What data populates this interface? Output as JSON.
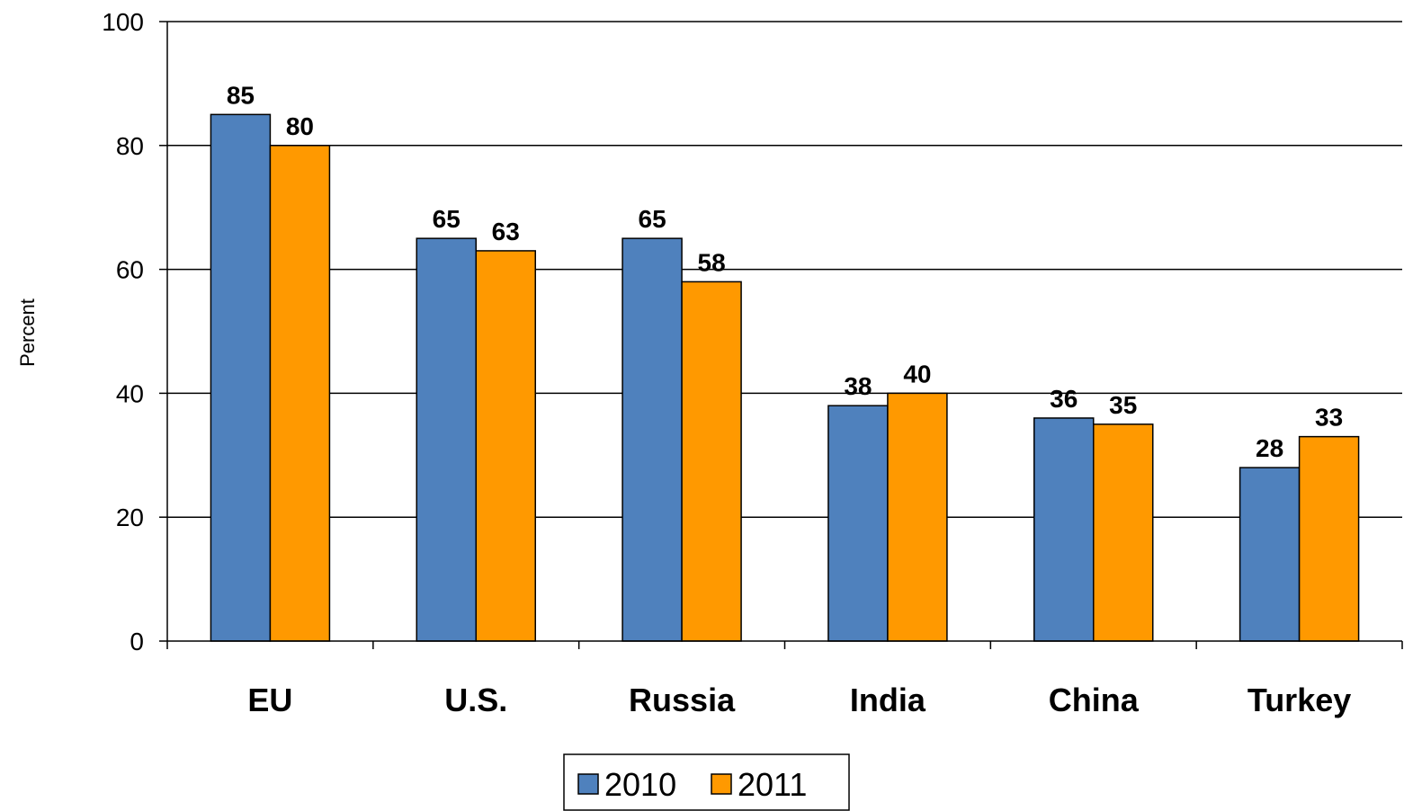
{
  "chart_data": {
    "type": "bar",
    "categories": [
      "EU",
      "U.S.",
      "Russia",
      "India",
      "China",
      "Turkey"
    ],
    "series": [
      {
        "name": "2010",
        "values": [
          85,
          65,
          65,
          38,
          36,
          28
        ],
        "color": "#4F81BD"
      },
      {
        "name": "2011",
        "values": [
          80,
          63,
          58,
          40,
          35,
          33
        ],
        "color": "#FF9900"
      }
    ],
    "ylabel": "Percent",
    "xlabel": "",
    "ylim": [
      0,
      100
    ],
    "yticks": [
      0,
      20,
      40,
      60,
      80,
      100
    ],
    "grid": true,
    "legend_position": "bottom-center",
    "data_labels": true
  }
}
